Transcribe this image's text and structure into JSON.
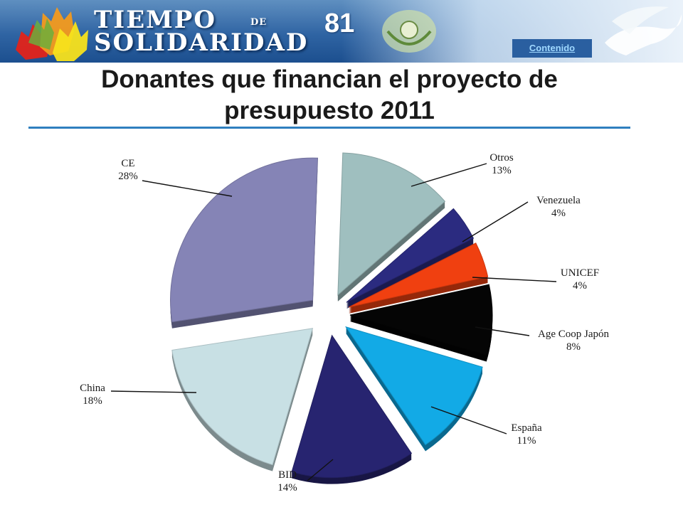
{
  "header": {
    "logo_line1": "TIEMPO",
    "logo_small": "DE",
    "logo_line2": "SOLIDARIDAD",
    "slide_number": "81",
    "contenido_link": "Contenido"
  },
  "title": "Donantes que financian el proyecto de presupuesto 2011",
  "colors": {
    "banner": "#2f64a3",
    "title_rule": "#2f7fbf",
    "contenido_text": "#9fd8ff"
  },
  "chart_data": {
    "type": "pie",
    "style": "3d-exploded",
    "unit": "%",
    "categories": [
      "Otros",
      "Venezuela",
      "UNICEF",
      "Age Coop Japón",
      "España",
      "BID",
      "China",
      "CE"
    ],
    "values": [
      13,
      4,
      4,
      8,
      11,
      14,
      18,
      28
    ],
    "labels": [
      "13%",
      "4%",
      "4%",
      "8%",
      "11%",
      "14%",
      "18%",
      "28%"
    ],
    "colors": [
      "#9fbfbf",
      "#2b2b80",
      "#f04010",
      "#050505",
      "#12aae6",
      "#272470",
      "#c8e0e4",
      "#8584b6"
    ],
    "legend": "none"
  }
}
